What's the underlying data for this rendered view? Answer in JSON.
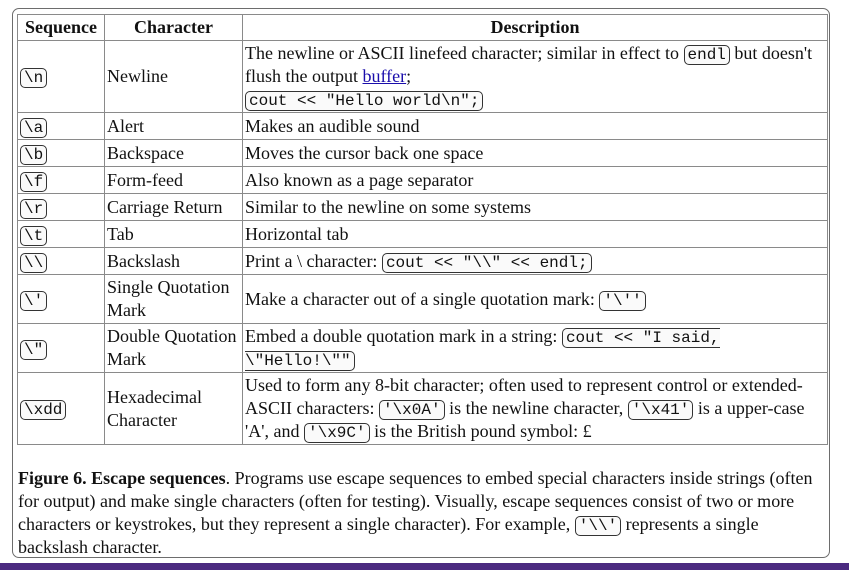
{
  "table": {
    "headers": [
      "Sequence",
      "Character",
      "Description"
    ],
    "rows": [
      {
        "seq": "\\n",
        "char": "Newline",
        "desc_parts": [
          "The newline or ASCII linefeed character; similar in effect to ",
          "endl",
          " but doesn't flush the output ",
          "buffer",
          ";"
        ],
        "desc_code2": "cout << \"Hello world\\n\";"
      },
      {
        "seq": "\\a",
        "char": "Alert",
        "desc": "Makes an audible sound"
      },
      {
        "seq": "\\b",
        "char": "Backspace",
        "desc": "Moves the cursor back one space"
      },
      {
        "seq": "\\f",
        "char": "Form-feed",
        "desc": "Also known as a page separator"
      },
      {
        "seq": "\\r",
        "char": "Carriage Return",
        "desc": "Similar to the newline on some systems"
      },
      {
        "seq": "\\t",
        "char": "Tab",
        "desc": "Horizontal tab"
      },
      {
        "seq": "\\\\",
        "char": "Backslash",
        "desc_parts": [
          "Print a \\ character: ",
          "cout << \"\\\\\" << endl;"
        ]
      },
      {
        "seq": "\\'",
        "char": "Single Quotation Mark",
        "desc_parts": [
          "Make a character out of a single quotation mark: ",
          "'\\''"
        ]
      },
      {
        "seq": "\\\"",
        "char": "Double Quotation Mark",
        "desc_parts": [
          "Embed a double quotation mark in a string: ",
          "cout << \"I said, \\\"Hello!\\\"\""
        ]
      },
      {
        "seq": "\\xdd",
        "char": "Hexadecimal Character",
        "desc_parts": [
          "Used to form any 8-bit character; often used to represent control or extended-ASCII characters: ",
          "'\\x0A'",
          " is the newline character, ",
          "'\\x41'",
          " is a upper-case 'A', and ",
          "'\\x9C'",
          " is the British pound symbol: £"
        ]
      }
    ]
  },
  "caption": {
    "title": "Figure 6. Escape sequences",
    "text_1": ". Programs use escape sequences to embed special characters inside strings (often for output) and make single characters (often for testing). Visually, escape sequences consist of two or more characters or keystrokes, but they represent a single character). For example, ",
    "code": "'\\\\'",
    "text_2": " represents a single backslash character."
  },
  "colors": {
    "accent_bar": "#4b2a80",
    "link": "#1a0dab"
  }
}
